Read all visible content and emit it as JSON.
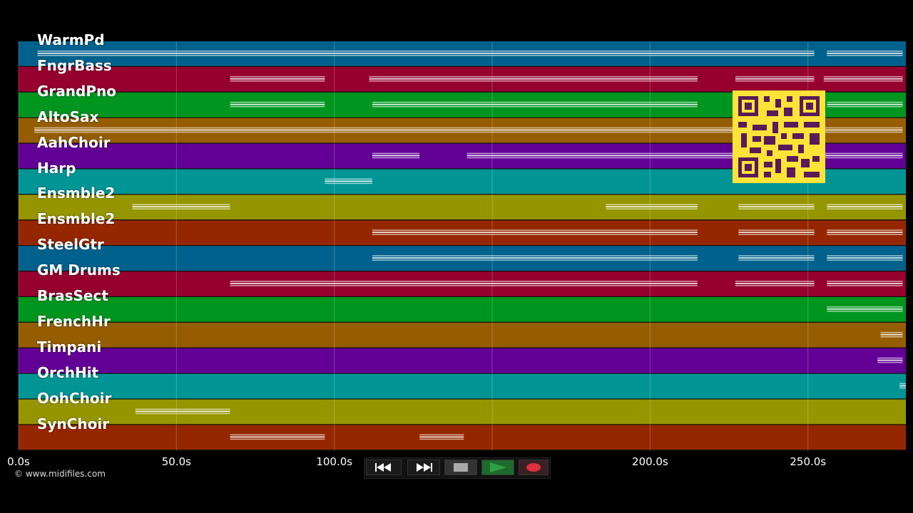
{
  "tracks": [
    {
      "name": "WarmPd",
      "color": "#00628c"
    },
    {
      "name": "FngrBass",
      "color": "#95002f"
    },
    {
      "name": "GrandPno",
      "color": "#00951f"
    },
    {
      "name": "AltoSax",
      "color": "#955d00"
    },
    {
      "name": "AahChoir",
      "color": "#620095"
    },
    {
      "name": "Harp",
      "color": "#009595"
    },
    {
      "name": "Ensmble2",
      "color": "#959500"
    },
    {
      "name": "Ensmble2",
      "color": "#952700"
    },
    {
      "name": "SteelGtr",
      "color": "#00628c"
    },
    {
      "name": "GM Drums",
      "color": "#95002f"
    },
    {
      "name": "BrasSect",
      "color": "#00951f"
    },
    {
      "name": "FrenchHr",
      "color": "#955d00"
    },
    {
      "name": "Timpani",
      "color": "#620095"
    },
    {
      "name": "OrchHit",
      "color": "#009595"
    },
    {
      "name": "OohChoir",
      "color": "#959500"
    },
    {
      "name": "SynChoir",
      "color": "#952700"
    }
  ],
  "timeline": {
    "ticks": [
      "0.0s",
      "50.0s",
      "100.0s",
      "150.0s",
      "200.0s",
      "250.0s"
    ],
    "tick_values": [
      0,
      50,
      100,
      150,
      200,
      250
    ],
    "duration": 281
  },
  "notes": [
    [
      [
        6,
        252
      ],
      [
        256,
        280
      ]
    ],
    [
      [
        67,
        97
      ],
      [
        111,
        215
      ],
      [
        227,
        252
      ],
      [
        255,
        280
      ]
    ],
    [
      [
        67,
        97
      ],
      [
        112,
        215
      ],
      [
        256,
        280
      ]
    ],
    [
      [
        5,
        280
      ]
    ],
    [
      [
        112,
        127
      ],
      [
        142,
        280
      ]
    ],
    [
      [
        97,
        112
      ]
    ],
    [
      [
        36,
        67
      ],
      [
        186,
        215
      ],
      [
        228,
        252
      ],
      [
        256,
        280
      ]
    ],
    [
      [
        112,
        215
      ],
      [
        228,
        252
      ],
      [
        256,
        280
      ]
    ],
    [
      [
        112,
        215
      ],
      [
        228,
        252
      ],
      [
        256,
        280
      ]
    ],
    [
      [
        67,
        215
      ],
      [
        227,
        252
      ],
      [
        256,
        280
      ]
    ],
    [
      [
        256,
        280
      ]
    ],
    [
      [
        273,
        280
      ]
    ],
    [
      [
        272,
        280
      ]
    ],
    [
      [
        279,
        281
      ]
    ],
    [
      [
        37,
        67
      ]
    ],
    [
      [
        67,
        97
      ],
      [
        127,
        141
      ]
    ]
  ],
  "copyright": "© www.midifiles.com",
  "transport": {
    "colors": {
      "play": "#2ea043",
      "record": "#e03040"
    }
  }
}
